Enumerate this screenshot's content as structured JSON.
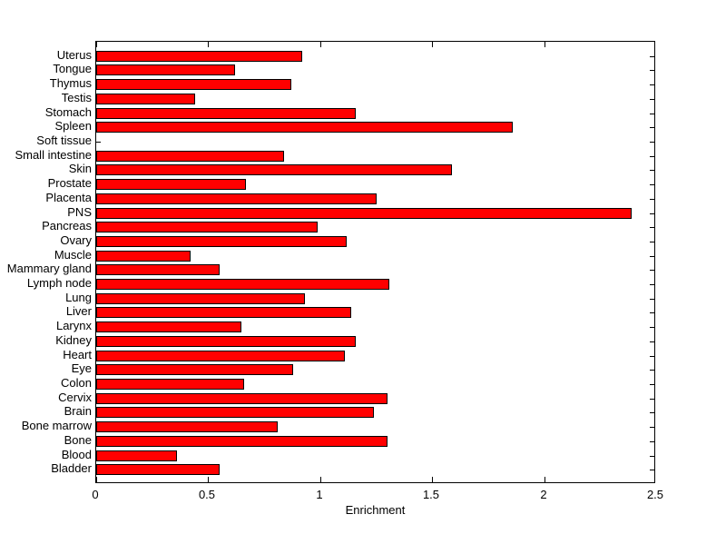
{
  "chart_data": {
    "type": "bar",
    "orientation": "horizontal",
    "xlabel": "Enrichment",
    "xlim": [
      0,
      2.5
    ],
    "xticks": [
      0,
      0.5,
      1,
      1.5,
      2,
      2.5
    ],
    "xtick_labels": [
      "0",
      "0.5",
      "1",
      "1.5",
      "2",
      "2.5"
    ],
    "grid": false,
    "bar_color": "#ff0000",
    "bar_edge_color": "#000000",
    "background_color": "#ffffff",
    "categories_top_to_bottom": [
      "Uterus",
      "Tongue",
      "Thymus",
      "Testis",
      "Stomach",
      "Spleen",
      "Soft tissue",
      "Small intestine",
      "Skin",
      "Prostate",
      "Placenta",
      "PNS",
      "Pancreas",
      "Ovary",
      "Muscle",
      "Mammary gland",
      "Lymph node",
      "Lung",
      "Liver",
      "Larynx",
      "Kidney",
      "Heart",
      "Eye",
      "Colon",
      "Cervix",
      "Brain",
      "Bone marrow",
      "Bone",
      "Blood",
      "Bladder"
    ],
    "values": [
      0.92,
      0.62,
      0.87,
      0.44,
      1.16,
      1.86,
      0,
      0.84,
      1.59,
      0.67,
      1.25,
      2.39,
      0.99,
      1.12,
      0.42,
      0.55,
      1.31,
      0.93,
      1.14,
      0.65,
      1.16,
      1.11,
      0.88,
      0.66,
      1.3,
      1.24,
      0.81,
      1.3,
      0.36,
      0.55
    ]
  }
}
